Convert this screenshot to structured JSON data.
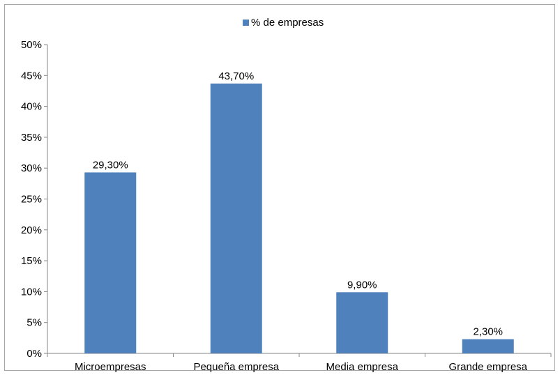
{
  "chart_data": {
    "type": "bar",
    "categories": [
      "Microempresas",
      "Pequeña empresa",
      "Media empresa",
      "Grande empresa"
    ],
    "series": [
      {
        "name": "% de empresas",
        "values": [
          29.3,
          43.7,
          9.9,
          2.3
        ],
        "labels": [
          "29,30%",
          "43,70%",
          "9,90%",
          "2,30%"
        ],
        "color": "#4f81bd"
      }
    ],
    "title": "",
    "xlabel": "",
    "ylabel": "",
    "ylim": [
      0,
      50
    ],
    "yticks": [
      "0%",
      "5%",
      "10%",
      "15%",
      "20%",
      "25%",
      "30%",
      "35%",
      "40%",
      "45%",
      "50%"
    ],
    "grid": false,
    "legend": "top"
  }
}
